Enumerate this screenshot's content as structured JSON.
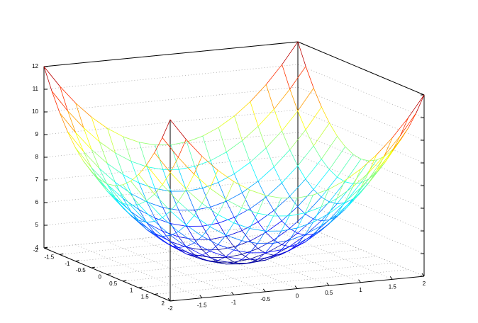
{
  "chart_data": {
    "type": "surface",
    "x": [
      -2,
      -1.75,
      -1.5,
      -1.25,
      -1,
      -0.75,
      -0.5,
      -0.25,
      0,
      0.25,
      0.5,
      0.75,
      1,
      1.25,
      1.5,
      1.75,
      2
    ],
    "y": [
      -2,
      -1.75,
      -1.5,
      -1.25,
      -1,
      -0.75,
      -0.5,
      -0.25,
      0,
      0.25,
      0.5,
      0.75,
      1,
      1.25,
      1.5,
      1.75,
      2
    ],
    "z": [
      [
        12,
        11.0625,
        10.25,
        9.5625,
        9,
        8.5625,
        8.25,
        8.0625,
        8,
        8.0625,
        8.25,
        8.5625,
        9,
        9.5625,
        10.25,
        11.0625,
        12
      ],
      [
        11.0625,
        10.125,
        9.3125,
        8.625,
        8.0625,
        7.625,
        7.3125,
        7.125,
        7.0625,
        7.125,
        7.3125,
        7.625,
        8.0625,
        8.625,
        9.3125,
        10.125,
        11.0625
      ],
      [
        10.25,
        9.3125,
        8.5,
        7.8125,
        7.25,
        6.8125,
        6.5,
        6.3125,
        6.25,
        6.3125,
        6.5,
        6.8125,
        7.25,
        7.8125,
        8.5,
        9.3125,
        10.25
      ],
      [
        9.5625,
        8.625,
        7.8125,
        7.125,
        6.5625,
        6.125,
        5.8125,
        5.625,
        5.5625,
        5.625,
        5.8125,
        6.125,
        6.5625,
        7.125,
        7.8125,
        8.625,
        9.5625
      ],
      [
        9,
        8.0625,
        7.25,
        6.5625,
        6,
        5.5625,
        5.25,
        5.0625,
        5,
        5.0625,
        5.25,
        5.5625,
        6,
        6.5625,
        7.25,
        8.0625,
        9
      ],
      [
        8.5625,
        7.625,
        6.8125,
        6.125,
        5.5625,
        5.125,
        4.8125,
        4.625,
        4.5625,
        4.625,
        4.8125,
        5.125,
        5.5625,
        6.125,
        6.8125,
        7.625,
        8.5625
      ],
      [
        8.25,
        7.3125,
        6.5,
        5.8125,
        5.25,
        4.8125,
        4.5,
        4.3125,
        4.25,
        4.3125,
        4.5,
        4.8125,
        5.25,
        5.8125,
        6.5,
        7.3125,
        8.25
      ],
      [
        8.0625,
        7.125,
        6.3125,
        5.625,
        5.0625,
        4.625,
        4.3125,
        4.125,
        4.0625,
        4.125,
        4.3125,
        4.625,
        5.0625,
        5.625,
        6.3125,
        7.125,
        8.0625
      ],
      [
        8,
        7.0625,
        6.25,
        5.5625,
        5,
        4.5625,
        4.25,
        4.0625,
        4,
        4.0625,
        4.25,
        4.5625,
        5,
        5.5625,
        6.25,
        7.0625,
        8
      ],
      [
        8.0625,
        7.125,
        6.3125,
        5.625,
        5.0625,
        4.625,
        4.3125,
        4.125,
        4.0625,
        4.125,
        4.3125,
        4.625,
        5.0625,
        5.625,
        6.3125,
        7.125,
        8.0625
      ],
      [
        8.25,
        7.3125,
        6.5,
        5.8125,
        5.25,
        4.8125,
        4.5,
        4.3125,
        4.25,
        4.3125,
        4.5,
        4.8125,
        5.25,
        5.8125,
        6.5,
        7.3125,
        8.25
      ],
      [
        8.5625,
        7.625,
        6.8125,
        6.125,
        5.5625,
        5.125,
        4.8125,
        4.625,
        4.5625,
        4.625,
        4.8125,
        5.125,
        5.5625,
        6.125,
        6.8125,
        7.625,
        8.5625
      ],
      [
        9,
        8.0625,
        7.25,
        6.5625,
        6,
        5.5625,
        5.25,
        5.0625,
        5,
        5.0625,
        5.25,
        5.5625,
        6,
        6.5625,
        7.25,
        8.0625,
        9
      ],
      [
        9.5625,
        8.625,
        7.8125,
        7.125,
        6.5625,
        6.125,
        5.8125,
        5.625,
        5.5625,
        5.625,
        5.8125,
        6.125,
        6.5625,
        7.125,
        7.8125,
        8.625,
        9.5625
      ],
      [
        10.25,
        9.3125,
        8.5,
        7.8125,
        7.25,
        6.8125,
        6.5,
        6.3125,
        6.25,
        6.3125,
        6.5,
        6.8125,
        7.25,
        7.8125,
        8.5,
        9.3125,
        10.25
      ],
      [
        11.0625,
        10.125,
        9.3125,
        8.625,
        8.0625,
        7.625,
        7.3125,
        7.125,
        7.0625,
        7.125,
        7.3125,
        7.625,
        8.0625,
        8.625,
        9.3125,
        10.125,
        11.0625
      ],
      [
        12,
        11.0625,
        10.25,
        9.5625,
        9,
        8.5625,
        8.25,
        8.0625,
        8,
        8.0625,
        8.25,
        8.5625,
        9,
        9.5625,
        10.25,
        11.0625,
        12
      ]
    ],
    "xlim": [
      -2,
      2
    ],
    "ylim": [
      -2,
      2
    ],
    "zlim": [
      4,
      12
    ],
    "xticks": [
      -2,
      -1.5,
      -1,
      -0.5,
      0,
      0.5,
      1,
      1.5,
      2
    ],
    "yticks": [
      -2,
      -1.5,
      -1,
      -0.5,
      0,
      0.5,
      1,
      1.5,
      2
    ],
    "zticks": [
      4,
      5,
      6,
      7,
      8,
      9,
      10,
      11,
      12
    ],
    "grid": true,
    "colormap": "jet"
  }
}
